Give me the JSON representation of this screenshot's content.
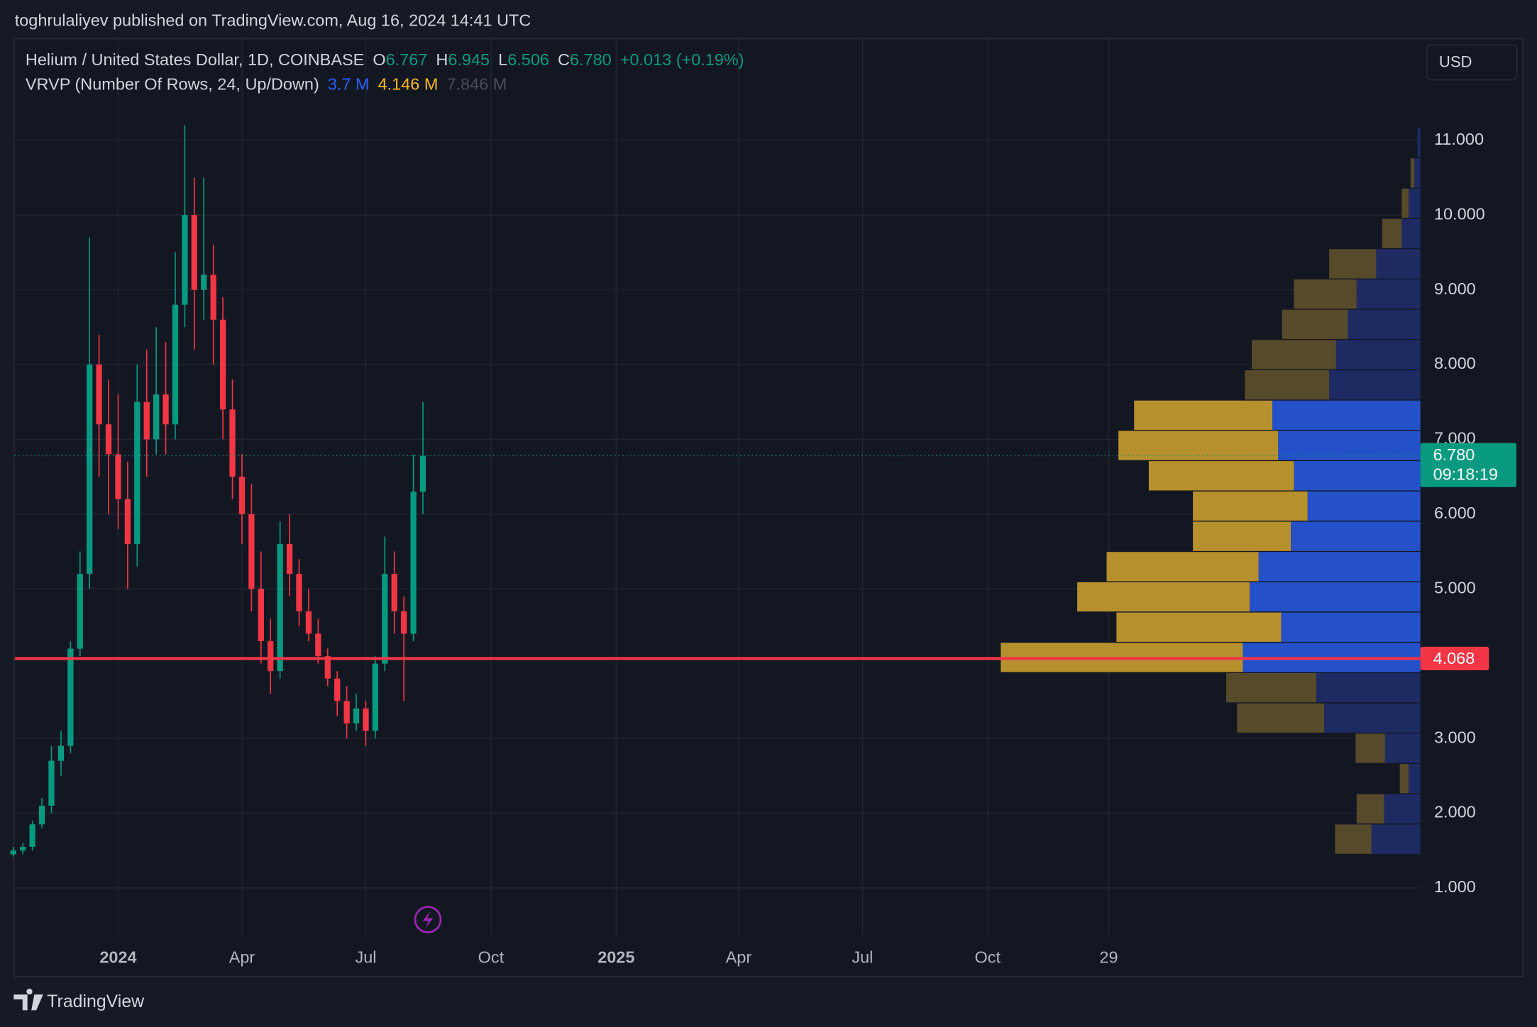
{
  "header": {
    "published": "toghrulaliyev published on TradingView.com, Aug 16, 2024 14:41 UTC",
    "currency": "USD",
    "brand": "TradingView"
  },
  "legend": {
    "symbol": "Helium / United States Dollar, 1D, COINBASE",
    "o_label": "O",
    "open": "6.767",
    "h_label": "H",
    "high": "6.945",
    "l_label": "L",
    "low": "6.506",
    "c_label": "C",
    "close": "6.780",
    "change": "+0.013 (+0.19%)",
    "indicator": "VRVP (Number Of Rows, 24, Up/Down)",
    "up": "3.7 M",
    "down": "4.146 M",
    "total": "7.846 M"
  },
  "chart_data": {
    "type": "candlestick",
    "up_color": "#089981",
    "down_color": "#f23645",
    "grid": true,
    "x": [
      "2023-10-16",
      "2023-10-23",
      "2023-10-30",
      "2023-11-06",
      "2023-11-13",
      "2023-11-20",
      "2023-11-27",
      "2023-12-04",
      "2023-12-11",
      "2023-12-18",
      "2023-12-25",
      "2024-01-01",
      "2024-01-08",
      "2024-01-15",
      "2024-01-22",
      "2024-01-29",
      "2024-02-05",
      "2024-02-12",
      "2024-02-19",
      "2024-02-26",
      "2024-03-04",
      "2024-03-11",
      "2024-03-18",
      "2024-03-25",
      "2024-04-01",
      "2024-04-08",
      "2024-04-15",
      "2024-04-22",
      "2024-04-29",
      "2024-05-06",
      "2024-05-13",
      "2024-05-20",
      "2024-05-27",
      "2024-06-03",
      "2024-06-10",
      "2024-06-17",
      "2024-06-24",
      "2024-07-01",
      "2024-07-08",
      "2024-07-15",
      "2024-07-22",
      "2024-07-29",
      "2024-08-05",
      "2024-08-12"
    ],
    "open": [
      1.45,
      1.5,
      1.55,
      1.85,
      2.1,
      2.7,
      2.9,
      4.2,
      5.2,
      8.0,
      7.2,
      6.8,
      6.2,
      5.6,
      7.5,
      7.0,
      7.6,
      7.2,
      8.8,
      10.0,
      9.0,
      9.2,
      8.6,
      7.4,
      6.5,
      6.0,
      5.0,
      4.3,
      3.9,
      5.6,
      5.2,
      4.7,
      4.4,
      4.1,
      3.8,
      3.5,
      3.2,
      3.4,
      3.1,
      4.0,
      5.2,
      4.7,
      4.4,
      6.3
    ],
    "high": [
      1.55,
      1.6,
      1.9,
      2.2,
      2.9,
      3.1,
      4.3,
      5.5,
      9.7,
      8.4,
      7.8,
      7.6,
      6.7,
      8.0,
      8.2,
      8.5,
      8.3,
      9.5,
      11.2,
      10.5,
      10.5,
      9.6,
      8.9,
      7.8,
      6.8,
      6.4,
      5.5,
      4.6,
      5.9,
      6.0,
      5.4,
      5.0,
      4.6,
      4.2,
      3.9,
      3.7,
      3.6,
      3.5,
      4.1,
      5.7,
      5.5,
      4.9,
      6.8,
      7.5
    ],
    "low": [
      1.42,
      1.45,
      1.5,
      1.8,
      2.0,
      2.5,
      2.8,
      4.1,
      5.0,
      6.5,
      6.0,
      5.8,
      5.0,
      5.3,
      6.5,
      6.8,
      6.8,
      7.0,
      8.5,
      8.2,
      8.6,
      8.0,
      7.0,
      6.2,
      5.6,
      4.7,
      4.0,
      3.6,
      3.8,
      4.9,
      4.5,
      4.3,
      4.0,
      3.7,
      3.3,
      3.0,
      3.1,
      2.9,
      3.0,
      3.9,
      4.4,
      3.5,
      4.3,
      6.0
    ],
    "close": [
      1.5,
      1.55,
      1.85,
      2.1,
      2.7,
      2.9,
      4.2,
      5.2,
      8.0,
      7.2,
      6.8,
      6.2,
      5.6,
      7.5,
      7.0,
      7.6,
      7.2,
      8.8,
      10.0,
      9.0,
      9.2,
      8.6,
      7.4,
      6.5,
      6.0,
      5.0,
      4.3,
      3.9,
      5.6,
      5.2,
      4.7,
      4.4,
      4.1,
      3.8,
      3.5,
      3.2,
      3.4,
      3.1,
      4.0,
      5.2,
      4.7,
      4.4,
      6.3,
      6.78
    ],
    "ylim": [
      0.36,
      12.35
    ],
    "yticks": [
      {
        "value": 1,
        "label": "1.000"
      },
      {
        "value": 2,
        "label": "2.000"
      },
      {
        "value": 3,
        "label": "3.000"
      },
      {
        "value": 5,
        "label": "5.000"
      },
      {
        "value": 6,
        "label": "6.000"
      },
      {
        "value": 7,
        "label": "7.000"
      },
      {
        "value": 8,
        "label": "8.000"
      },
      {
        "value": 9,
        "label": "9.000"
      },
      {
        "value": 10,
        "label": "10.000"
      },
      {
        "value": 11,
        "label": "11.000"
      }
    ],
    "xlim": [
      "2023-10-17",
      "2026-08-15"
    ],
    "xticks": [
      {
        "value": "2024-01-01",
        "label": "2024"
      },
      {
        "value": "2024-04-01",
        "label": "Apr"
      },
      {
        "value": "2024-07-01",
        "label": "Jul"
      },
      {
        "value": "2024-10-01",
        "label": "Oct"
      },
      {
        "value": "2025-01-01",
        "label": "2025"
      },
      {
        "value": "2025-04-01",
        "label": "Apr"
      },
      {
        "value": "2025-07-01",
        "label": "Jul"
      },
      {
        "value": "2025-10-01",
        "label": "Oct"
      },
      {
        "value": "2025-12-29",
        "label": "29"
      }
    ],
    "current_price": {
      "value": 6.78,
      "label": "6.780",
      "countdown": "09:18:19",
      "color": "#089981"
    },
    "poc": {
      "value": 4.068,
      "color": "#f23645"
    },
    "profile": {
      "range": [
        1.45,
        11.17
      ],
      "value_area": [
        6,
        14
      ],
      "up_color": "#2451c7",
      "down_color": "#b7902e",
      "up_dim_color": "#1e2b63",
      "down_dim_color": "#574a2b",
      "up": [
        50,
        37,
        12,
        36,
        98,
        106,
        181,
        142,
        174,
        165,
        132,
        115,
        129,
        145,
        151,
        93,
        86,
        74,
        65,
        45,
        19,
        12,
        6,
        3
      ],
      "down": [
        37,
        28,
        9,
        30,
        89,
        92,
        247,
        168,
        176,
        155,
        100,
        117,
        148,
        163,
        141,
        86,
        86,
        67,
        64,
        48,
        20,
        7,
        4,
        0
      ]
    }
  }
}
